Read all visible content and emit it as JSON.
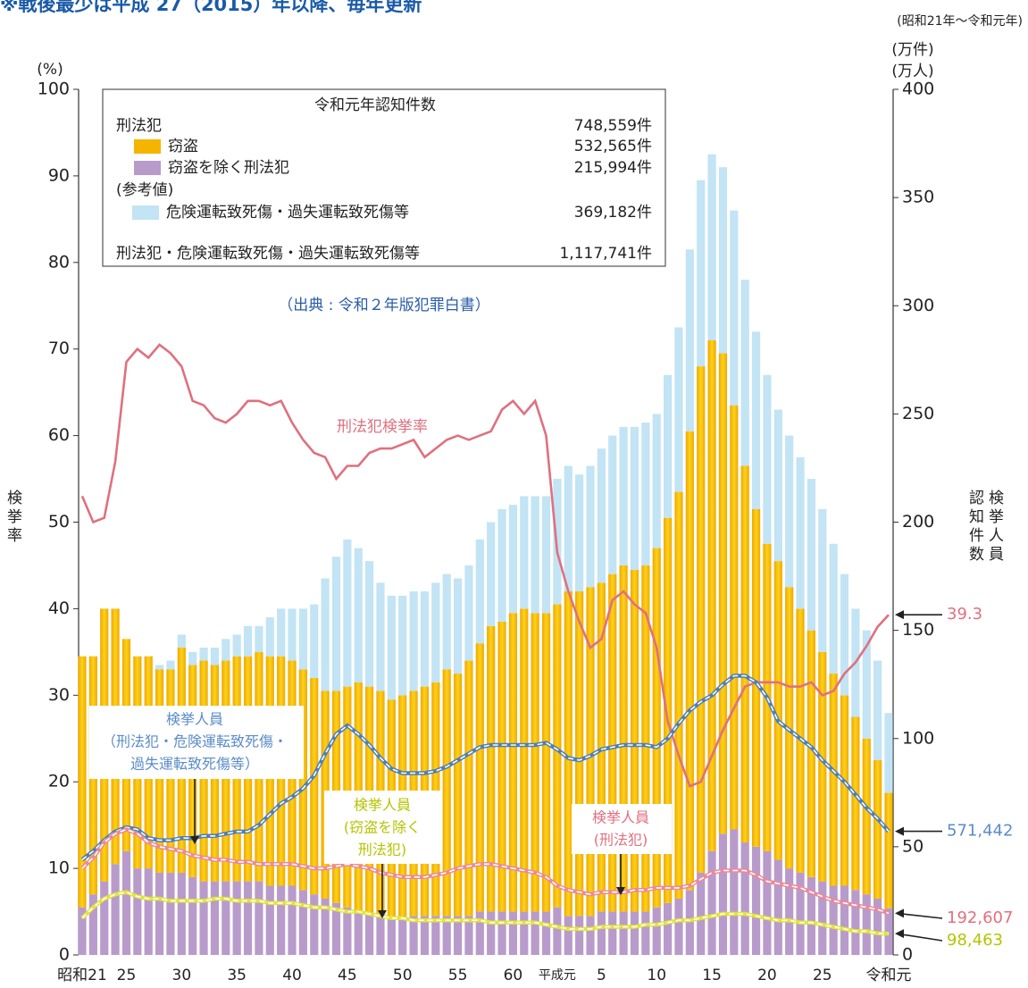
{
  "chart_data": {
    "type": "bar",
    "title": "※戦後最少は平成 27（2015）年以降、毎年更新",
    "period": "(昭和21年～令和元年)",
    "y_unit": "(%)",
    "y2_units": [
      "(万件)",
      "(万人)"
    ],
    "y_label": "検挙率",
    "y2_labels": [
      "認知件数",
      "検挙人員"
    ],
    "source": "（出典 : 令和２年版犯罪白書）",
    "legend_box": {
      "title": "令和元年認知件数",
      "total_crime": {
        "label": "刑法犯",
        "count": "748,559件"
      },
      "note": "(参考値)",
      "grand_total": {
        "label": "刑法犯・危険運転致死傷・過失運転致死傷等",
        "count": "1,117,741件"
      }
    },
    "categories": [
      "昭和21",
      null,
      null,
      null,
      "25",
      null,
      null,
      null,
      null,
      "30",
      null,
      null,
      null,
      null,
      "35",
      null,
      null,
      null,
      null,
      "40",
      null,
      null,
      null,
      null,
      "45",
      null,
      null,
      null,
      null,
      "50",
      null,
      null,
      null,
      null,
      "55",
      null,
      null,
      null,
      null,
      "60",
      null,
      null,
      null,
      "平成元",
      null,
      null,
      null,
      "5",
      null,
      null,
      null,
      null,
      "10",
      null,
      null,
      null,
      null,
      "15",
      null,
      null,
      null,
      null,
      "20",
      null,
      null,
      null,
      null,
      "25",
      null,
      null,
      null,
      null,
      null,
      "令和元"
    ],
    "ylim": [
      0,
      100
    ],
    "yticks": [
      0,
      10,
      20,
      30,
      40,
      50,
      60,
      70,
      80,
      90,
      100
    ],
    "y2lim": [
      0,
      400
    ],
    "y2ticks": [
      0,
      50,
      100,
      150,
      200,
      250,
      300,
      350,
      400
    ],
    "series": [
      {
        "name": "窃盗を除く刑法犯",
        "type": "bar",
        "axis": "y2",
        "color": "#b89bcb",
        "count": "215,994件",
        "values": [
          22,
          28,
          34,
          42,
          48,
          40,
          40,
          38,
          38,
          38,
          36,
          34,
          34,
          34,
          34,
          34,
          34,
          32,
          32,
          32,
          30,
          28,
          26,
          24,
          22,
          20,
          20,
          18,
          18,
          18,
          18,
          18,
          18,
          18,
          18,
          18,
          20,
          20,
          20,
          20,
          20,
          20,
          20,
          22,
          18,
          18,
          18,
          20,
          20,
          20,
          20,
          20,
          22,
          24,
          26,
          30,
          38,
          48,
          56,
          58,
          52,
          50,
          48,
          44,
          40,
          38,
          36,
          34,
          32,
          32,
          30,
          28,
          26,
          21.6
        ]
      },
      {
        "name": "窃盗",
        "type": "bar",
        "axis": "y2",
        "color": "#f5b400",
        "count": "532,565件",
        "values": [
          116,
          110,
          126,
          118,
          98,
          98,
          98,
          94,
          94,
          104,
          98,
          102,
          100,
          102,
          104,
          104,
          106,
          106,
          106,
          104,
          102,
          100,
          96,
          98,
          102,
          106,
          104,
          104,
          100,
          102,
          104,
          106,
          108,
          114,
          112,
          118,
          124,
          132,
          134,
          138,
          140,
          138,
          138,
          140,
          150,
          150,
          152,
          152,
          156,
          160,
          158,
          160,
          166,
          178,
          188,
          212,
          234,
          236,
          222,
          196,
          174,
          156,
          142,
          138,
          130,
          122,
          114,
          106,
          98,
          88,
          80,
          72,
          64,
          53.3
        ]
      },
      {
        "name": "危険運転致死傷・過失運転致死傷等",
        "type": "bar",
        "axis": "y2",
        "color": "#c2e4f4",
        "count": "369,182件",
        "values": [
          0,
          0,
          0,
          0,
          0,
          0,
          0,
          2,
          4,
          6,
          6,
          6,
          8,
          10,
          10,
          14,
          12,
          18,
          22,
          24,
          28,
          34,
          52,
          62,
          68,
          62,
          58,
          50,
          48,
          46,
          46,
          44,
          46,
          44,
          44,
          44,
          48,
          48,
          52,
          50,
          52,
          54,
          54,
          58,
          58,
          54,
          56,
          62,
          64,
          64,
          66,
          66,
          62,
          66,
          76,
          84,
          86,
          86,
          86,
          90,
          86,
          82,
          78,
          70,
          70,
          70,
          70,
          66,
          60,
          56,
          50,
          50,
          46,
          36.9
        ]
      },
      {
        "name": "刑法犯検挙率",
        "type": "line",
        "axis": "y",
        "color": "#e0707f",
        "end_label": "39.3",
        "values": [
          53,
          50,
          50.5,
          57,
          68.5,
          70,
          69,
          70.5,
          69.5,
          68,
          64,
          63.5,
          62,
          61.5,
          62.5,
          64,
          64,
          63.5,
          64,
          61.5,
          59.5,
          58,
          57.5,
          55,
          56.5,
          56.5,
          58,
          58.5,
          58.5,
          59,
          59.5,
          57.5,
          58.5,
          59.5,
          60,
          59.5,
          60,
          60.5,
          63,
          64,
          62.5,
          64,
          60,
          46.5,
          42,
          38.5,
          35.5,
          36.5,
          41,
          42,
          40.5,
          39.5,
          35.5,
          27,
          23,
          19.5,
          20,
          23,
          26,
          28.5,
          31,
          31.5,
          31.5,
          31.5,
          31,
          31,
          31.5,
          30,
          30.5,
          32.5,
          33.8,
          35.7,
          37.9,
          39.3
        ]
      },
      {
        "name": "検挙人員",
        "name_detail": [
          "（刑法犯・危険運転致死傷・",
          "過失運転致死傷等）"
        ],
        "type": "dashed",
        "axis": "y2",
        "color": "#4d7fb8",
        "label_color": "#5b8cc8",
        "end_label": "571,442",
        "values": [
          44,
          48,
          53,
          57,
          59,
          58,
          54,
          53,
          53,
          54,
          54,
          55,
          55,
          56,
          57,
          57,
          60,
          65,
          70,
          73,
          77,
          83,
          93,
          102,
          106,
          102,
          97,
          91,
          86,
          84,
          84,
          84,
          85,
          87,
          90,
          93,
          96,
          97,
          97,
          97,
          97,
          97,
          98,
          95,
          91,
          90,
          92,
          95,
          96,
          97,
          97,
          97,
          96,
          100,
          107,
          113,
          117,
          120,
          125,
          129,
          129,
          126,
          119,
          108,
          104,
          100,
          96,
          90,
          85,
          80,
          74,
          68,
          63,
          57.1442
        ]
      },
      {
        "name": "検挙人員",
        "name_detail": [
          "(窃盗を除く",
          "刑法犯)"
        ],
        "type": "dashed",
        "axis": "y2",
        "color": "#e3e33a",
        "label_color": "#b5c400",
        "end_label": "98,463",
        "values": [
          17,
          22,
          26,
          28,
          29,
          27,
          26,
          26,
          25,
          25,
          25,
          25,
          26,
          26,
          25,
          25,
          25,
          24,
          24,
          24,
          23,
          22,
          22,
          21,
          20,
          20,
          19,
          18,
          17,
          17,
          16,
          16,
          16,
          16,
          16,
          16,
          16,
          15,
          15,
          15,
          15,
          15,
          14,
          13,
          12,
          12,
          12,
          13,
          13,
          13,
          13,
          14,
          14,
          15,
          16,
          16,
          17,
          18,
          19,
          19,
          19,
          18,
          17,
          16,
          16,
          15,
          15,
          14,
          13,
          12,
          11,
          11,
          10,
          9.8463
        ]
      },
      {
        "name": "検挙人員",
        "name_detail": [
          "(刑法犯)"
        ],
        "type": "dashed",
        "axis": "y2",
        "color": "#ea8a9a",
        "label_color": "#e0707f",
        "end_label": "192,607",
        "values": [
          40,
          45,
          52,
          56,
          58,
          56,
          52,
          50,
          49,
          48,
          46,
          45,
          44,
          44,
          43,
          43,
          42,
          42,
          42,
          42,
          41,
          40,
          40,
          41,
          42,
          41,
          40,
          38,
          37,
          36,
          36,
          36,
          37,
          38,
          40,
          41,
          42,
          42,
          41,
          40,
          39,
          38,
          36,
          32,
          30,
          29,
          28,
          29,
          29,
          29,
          30,
          30,
          31,
          31,
          31,
          32,
          35,
          38,
          39,
          39,
          39,
          37,
          34,
          33,
          32,
          31,
          29,
          27,
          25,
          24,
          23,
          22,
          21,
          19.2607
        ]
      }
    ]
  }
}
